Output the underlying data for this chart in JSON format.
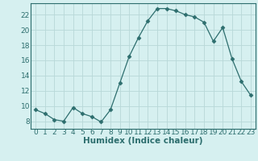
{
  "x": [
    0,
    1,
    2,
    3,
    4,
    5,
    6,
    7,
    8,
    9,
    10,
    11,
    12,
    13,
    14,
    15,
    16,
    17,
    18,
    19,
    20,
    21,
    22,
    23
  ],
  "y": [
    9.5,
    9.0,
    8.2,
    8.0,
    9.8,
    9.0,
    8.6,
    7.9,
    9.5,
    13.0,
    16.5,
    19.0,
    21.2,
    22.8,
    22.8,
    22.5,
    22.0,
    21.7,
    21.0,
    18.5,
    20.3,
    16.2,
    13.2,
    11.4
  ],
  "line_color": "#2d6e6e",
  "marker": "D",
  "marker_size": 2.5,
  "bg_color": "#d6f0f0",
  "grid_color": "#b8d8d8",
  "xlabel": "Humidex (Indice chaleur)",
  "ylim": [
    7,
    23.5
  ],
  "xlim": [
    -0.5,
    23.5
  ],
  "yticks": [
    8,
    10,
    12,
    14,
    16,
    18,
    20,
    22
  ],
  "xticks": [
    0,
    1,
    2,
    3,
    4,
    5,
    6,
    7,
    8,
    9,
    10,
    11,
    12,
    13,
    14,
    15,
    16,
    17,
    18,
    19,
    20,
    21,
    22,
    23
  ],
  "xlabel_fontsize": 7.5,
  "tick_fontsize": 6.5,
  "spine_color": "#2d6e6e"
}
